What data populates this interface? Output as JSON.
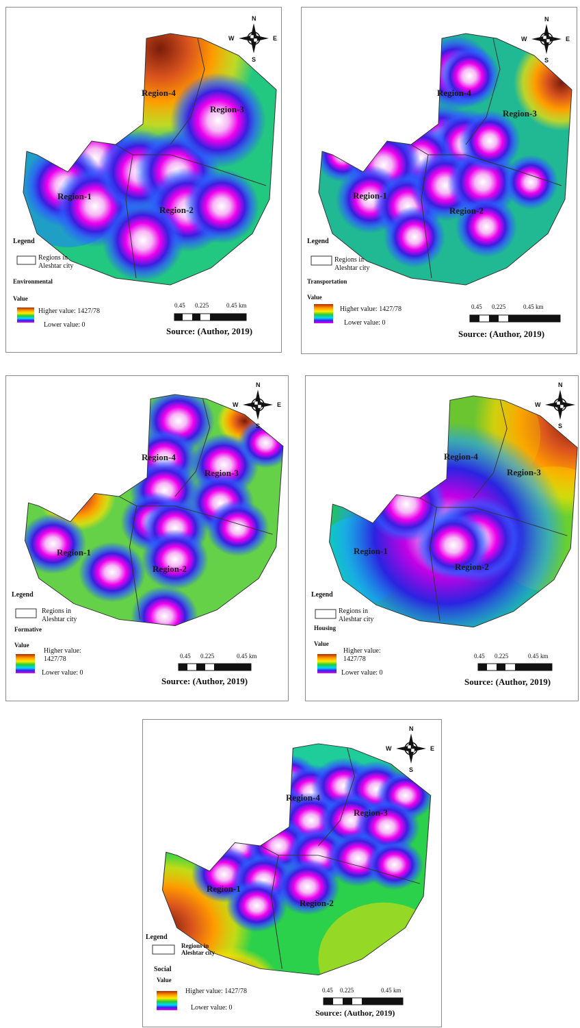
{
  "compass": {
    "n": "N",
    "s": "S",
    "e": "E",
    "w": "W"
  },
  "legend": {
    "title": "Legend",
    "boundary_label_line1": "Regions in",
    "boundary_label_line2": "Aleshtar city",
    "value_label": "Value",
    "higher_value": "Higher value:  1427/78",
    "higher_value_line1": "Higher value:",
    "higher_value_line2": "1427/78",
    "lower_value": "Lower value: 0"
  },
  "scale_bar": {
    "t0": "0.45",
    "t1": "0.225",
    "t2": "0.45 km"
  },
  "source": "Source: (Author, 2019)",
  "regions": [
    "Region-1",
    "Region-2",
    "Region-3",
    "Region-4"
  ],
  "colors": {
    "high": "#7a1c0a",
    "mid_high": "#ff8c00",
    "mid": "#ffff00",
    "green": "#00cc33",
    "cyan": "#00e5ff",
    "blue": "#2222dd",
    "low": "#ee00ee",
    "lowest": "#ffffff"
  },
  "maps": [
    {
      "theme": "Environmental"
    },
    {
      "theme": "Transportation"
    },
    {
      "theme": "Formative"
    },
    {
      "theme": "Housing"
    },
    {
      "theme": "Social"
    }
  ]
}
